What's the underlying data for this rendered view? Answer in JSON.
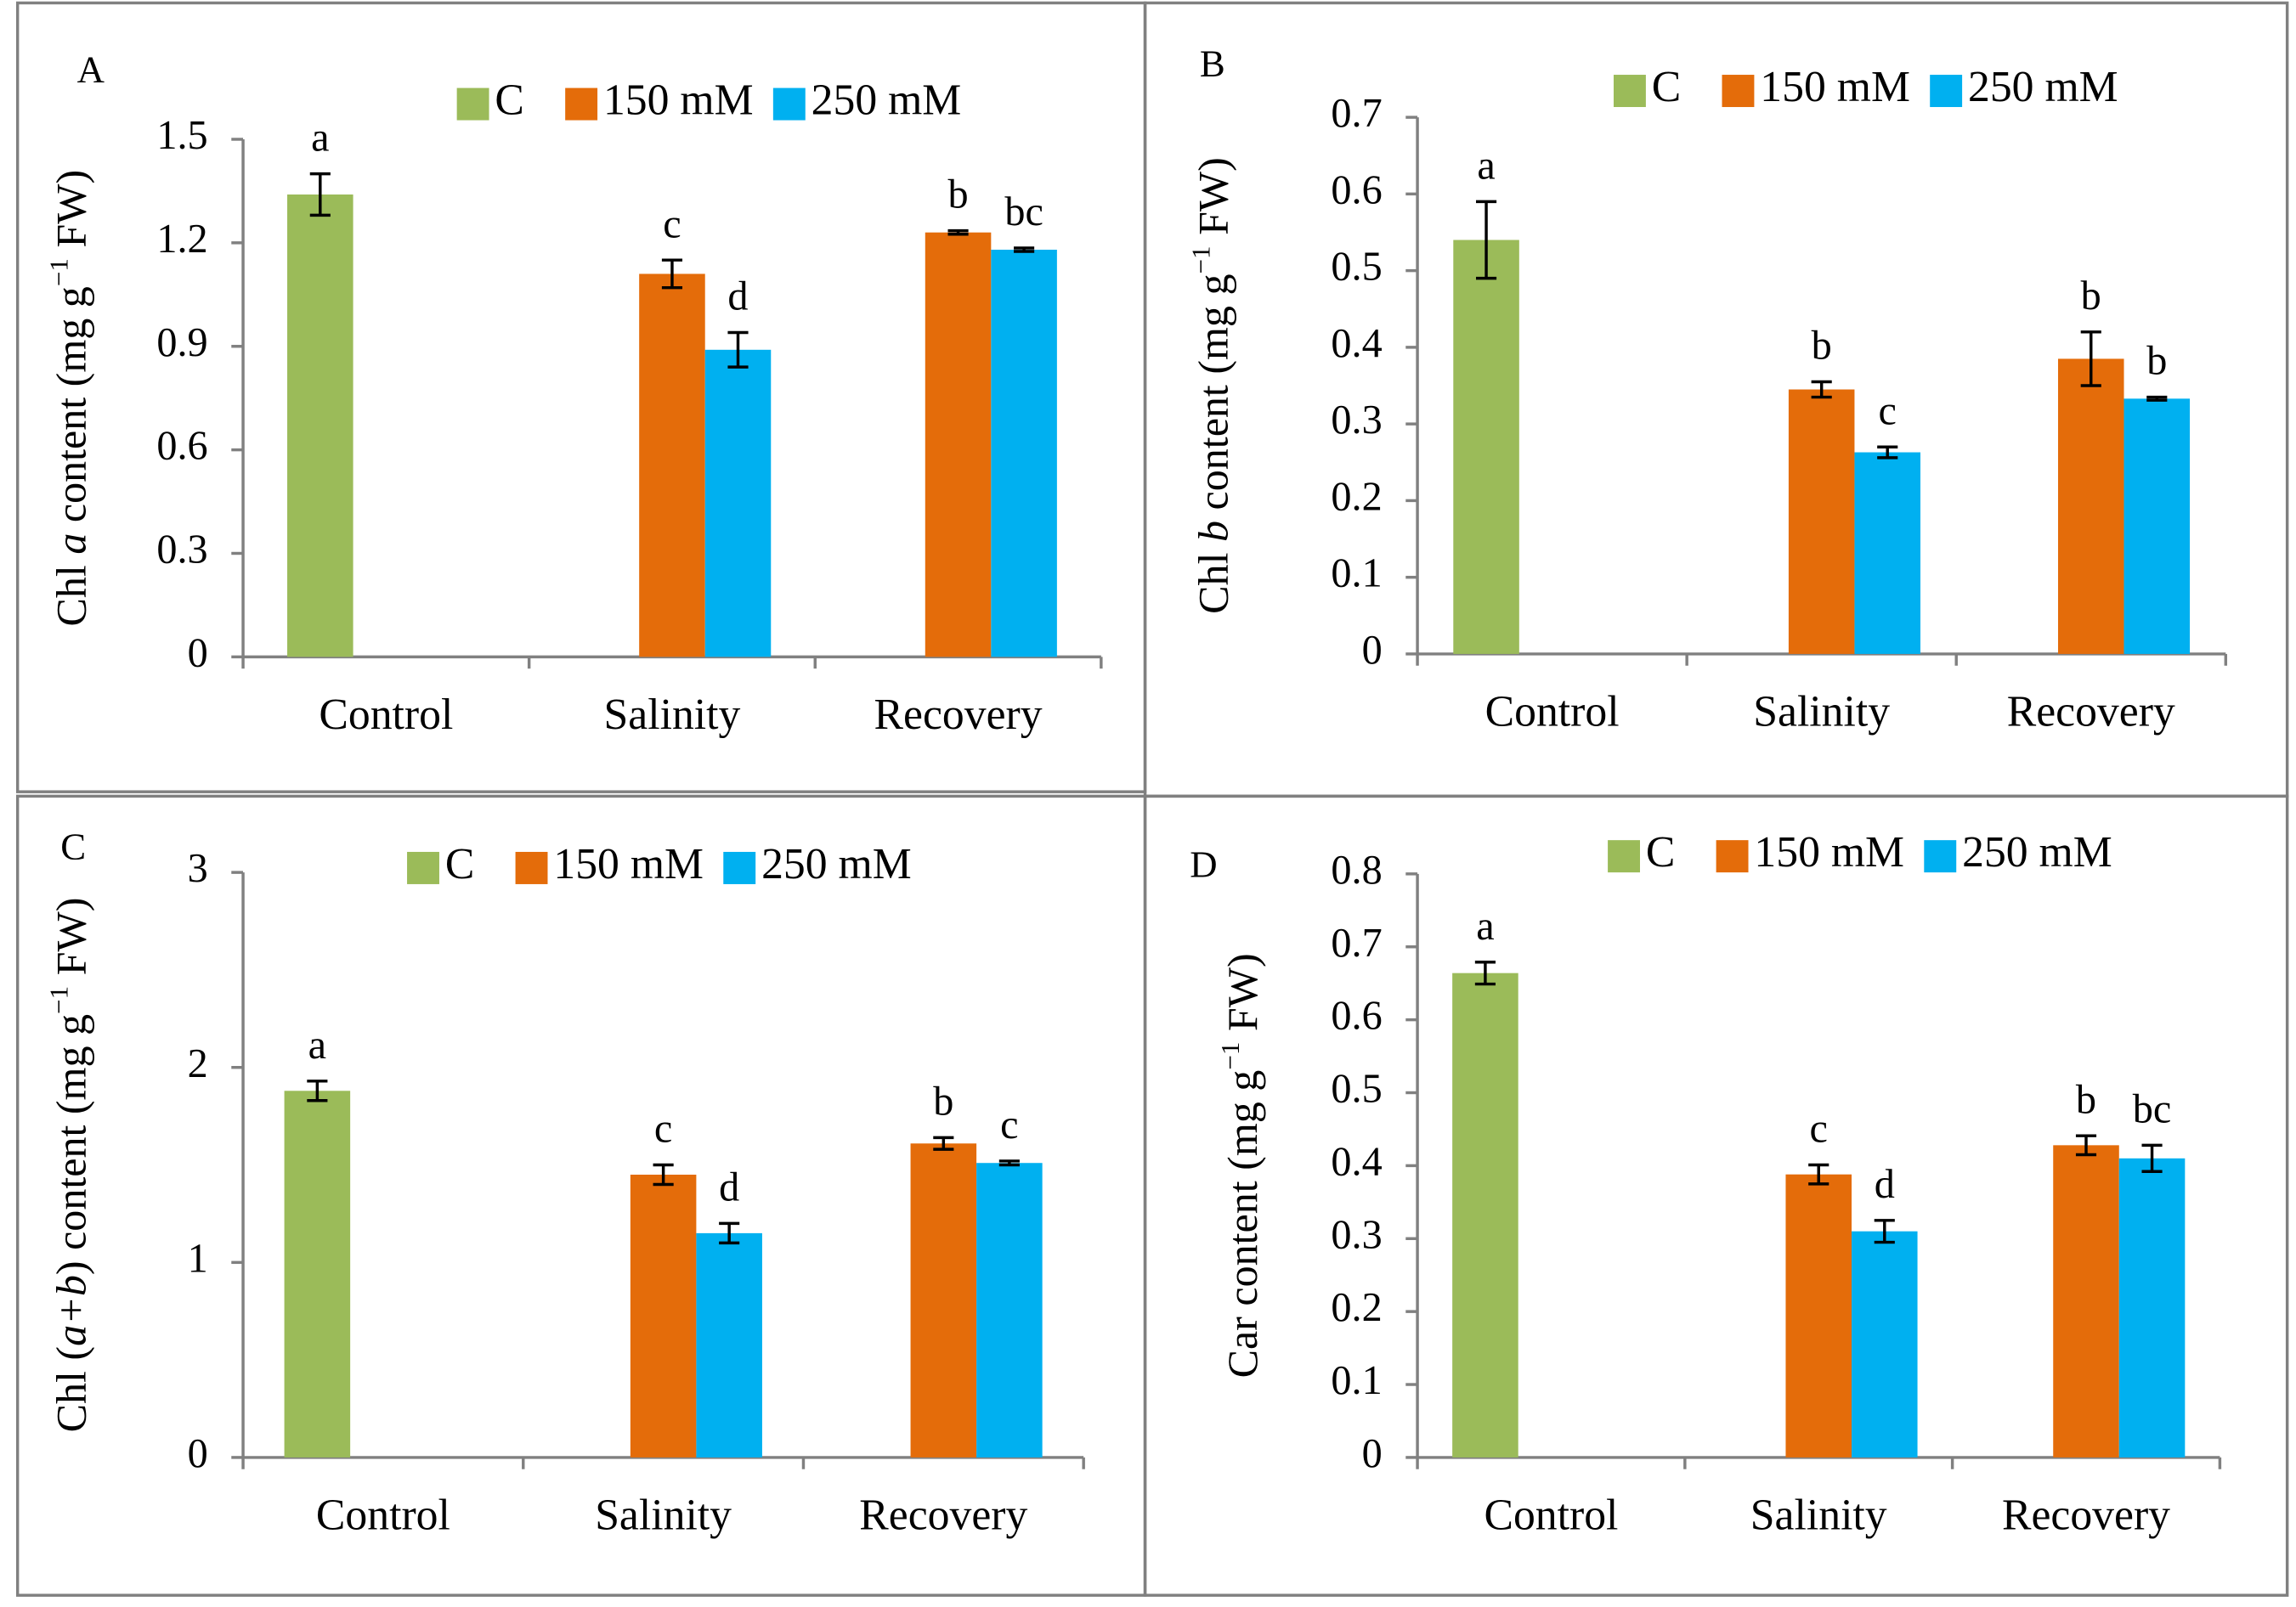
{
  "chart_data": [
    {
      "type": "bar",
      "panel_label": "A",
      "ylabel": [
        {
          "text": "Chl "
        },
        {
          "text": "a",
          "style": "italic"
        },
        {
          "text": " content (mg g"
        },
        {
          "text": "−1",
          "style": "sup"
        },
        {
          "text": " FW)"
        }
      ],
      "categories": [
        "Control",
        "Salinity",
        "Recovery"
      ],
      "series": [
        {
          "name": "C",
          "color": "#9bbb59",
          "values": [
            1.34,
            null,
            null
          ],
          "errors": [
            0.06,
            null,
            null
          ],
          "letters": [
            "a",
            null,
            null
          ]
        },
        {
          "name": "150 mM",
          "color": "#e46c0a",
          "values": [
            null,
            1.11,
            1.23
          ],
          "errors": [
            null,
            0.04,
            0.005
          ],
          "letters": [
            null,
            "c",
            "b"
          ]
        },
        {
          "name": "250 mM",
          "color": "#00b0f0",
          "values": [
            null,
            0.89,
            1.18
          ],
          "errors": [
            null,
            0.05,
            0.005
          ],
          "letters": [
            null,
            "d",
            "bc"
          ]
        }
      ],
      "ylim": [
        0,
        1.5
      ],
      "yticks": [
        0,
        0.3,
        0.6,
        0.9,
        1.2,
        1.5
      ]
    },
    {
      "type": "bar",
      "panel_label": "B",
      "ylabel": [
        {
          "text": "Chl "
        },
        {
          "text": "b",
          "style": "italic"
        },
        {
          "text": " content (mg g"
        },
        {
          "text": "−1",
          "style": "sup"
        },
        {
          "text": " FW)"
        }
      ],
      "categories": [
        "Control",
        "Salinity",
        "Recovery"
      ],
      "series": [
        {
          "name": "C",
          "color": "#9bbb59",
          "values": [
            0.54,
            null,
            null
          ],
          "errors": [
            0.05,
            null,
            null
          ],
          "letters": [
            "a",
            null,
            null
          ]
        },
        {
          "name": "150 mM",
          "color": "#e46c0a",
          "values": [
            null,
            0.345,
            0.385
          ],
          "errors": [
            null,
            0.01,
            0.035
          ],
          "letters": [
            null,
            "b",
            "b"
          ]
        },
        {
          "name": "250 mM",
          "color": "#00b0f0",
          "values": [
            null,
            0.263,
            0.333
          ],
          "errors": [
            null,
            0.007,
            0.002
          ],
          "letters": [
            null,
            "c",
            "b"
          ]
        }
      ],
      "ylim": [
        0,
        0.7
      ],
      "yticks": [
        0,
        0.1,
        0.2,
        0.3,
        0.4,
        0.5,
        0.6,
        0.7
      ]
    },
    {
      "type": "bar",
      "panel_label": "C",
      "ylabel": [
        {
          "text": "Chl ("
        },
        {
          "text": "a+b",
          "style": "italic"
        },
        {
          "text": ")  content (mg g"
        },
        {
          "text": "−1",
          "style": "sup"
        },
        {
          "text": " FW)"
        }
      ],
      "categories": [
        "Control",
        "Salinity",
        "Recovery"
      ],
      "series": [
        {
          "name": "C",
          "color": "#9bbb59",
          "values": [
            1.88,
            null,
            null
          ],
          "errors": [
            0.05,
            null,
            null
          ],
          "letters": [
            "a",
            null,
            null
          ]
        },
        {
          "name": "150 mM",
          "color": "#e46c0a",
          "values": [
            null,
            1.45,
            1.61
          ],
          "errors": [
            null,
            0.05,
            0.03
          ],
          "letters": [
            null,
            "c",
            "b"
          ]
        },
        {
          "name": "250 mM",
          "color": "#00b0f0",
          "values": [
            null,
            1.15,
            1.51
          ],
          "errors": [
            null,
            0.05,
            0.01
          ],
          "letters": [
            null,
            "d",
            "c"
          ]
        }
      ],
      "ylim": [
        0,
        3
      ],
      "yticks": [
        0,
        1,
        2,
        3
      ]
    },
    {
      "type": "bar",
      "panel_label": "D",
      "ylabel": [
        {
          "text": "Car content (mg g"
        },
        {
          "text": "−1",
          "style": "sup"
        },
        {
          "text": " FW)"
        }
      ],
      "categories": [
        "Control",
        "Salinity",
        "Recovery"
      ],
      "series": [
        {
          "name": "C",
          "color": "#9bbb59",
          "values": [
            0.664,
            null,
            null
          ],
          "errors": [
            0.015,
            null,
            null
          ],
          "letters": [
            "a",
            null,
            null
          ]
        },
        {
          "name": "150 mM",
          "color": "#e46c0a",
          "values": [
            null,
            0.388,
            0.428
          ],
          "errors": [
            null,
            0.013,
            0.013
          ],
          "letters": [
            null,
            "c",
            "b"
          ]
        },
        {
          "name": "250 mM",
          "color": "#00b0f0",
          "values": [
            null,
            0.31,
            0.41
          ],
          "errors": [
            null,
            0.015,
            0.018
          ],
          "letters": [
            null,
            "d",
            "bc"
          ]
        }
      ],
      "ylim": [
        0,
        0.8
      ],
      "yticks": [
        0,
        0.1,
        0.2,
        0.3,
        0.4,
        0.5,
        0.6,
        0.7,
        0.8
      ]
    }
  ]
}
